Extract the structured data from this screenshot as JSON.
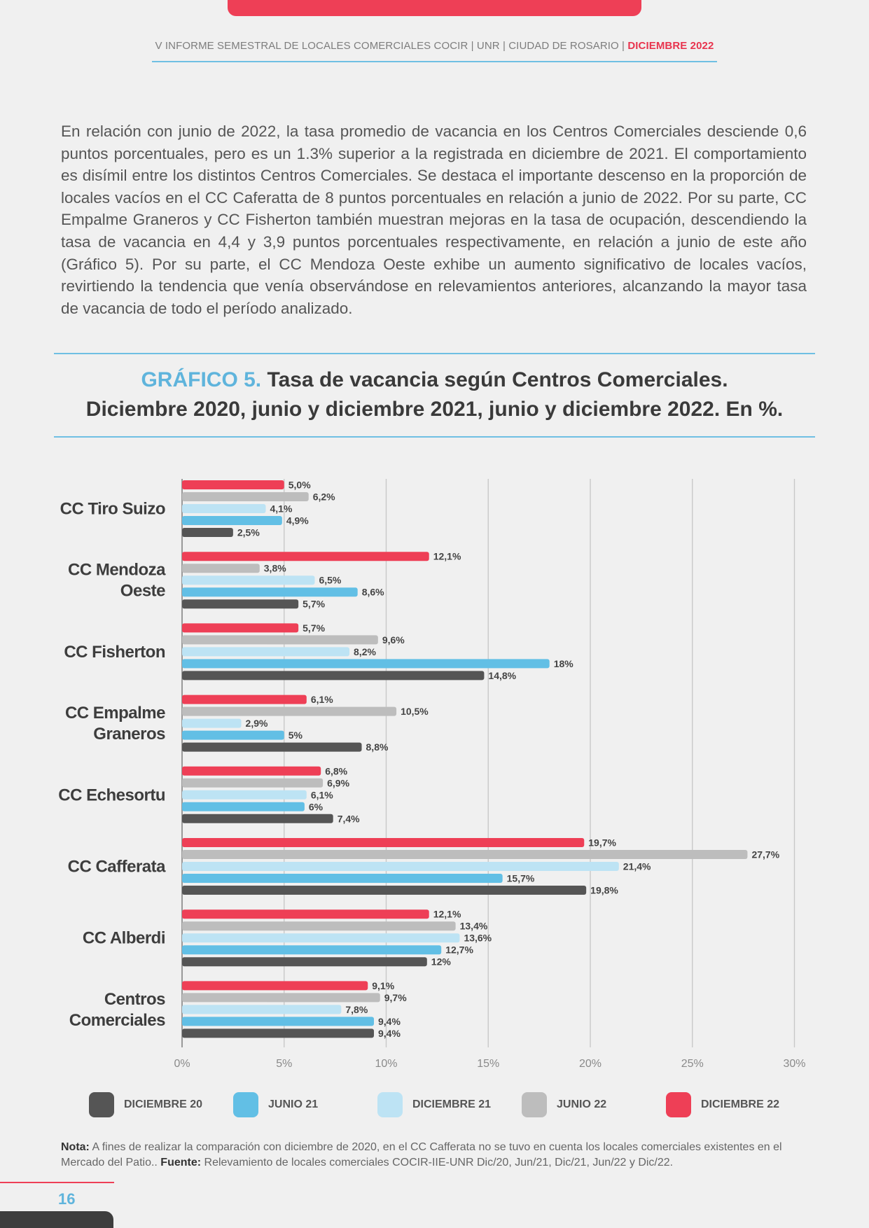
{
  "header": {
    "text": "V INFORME SEMESTRAL DE LOCALES COMERCIALES COCIR | UNR | CIUDAD DE ROSARIO | ",
    "accent": "DICIEMBRE 2022"
  },
  "intro": "En relación con junio de 2022, la tasa promedio de vacancia en los Centros Comerciales desciende 0,6 puntos porcentuales, pero es un 1.3% superior a la registrada en diciembre de 2021. El comportamiento es disímil entre los distintos Centros Comerciales. Se destaca el importante descenso en la proporción de locales vacíos en el CC Caferatta de 8 puntos porcentuales en relación a junio de 2022. Por su parte, CC Empalme Graneros y CC Fisherton también muestran mejoras en la tasa de ocupación, descendiendo la tasa de vacancia en 4,4 y 3,9 puntos porcentuales respectivamente, en relación a junio de este año (Gráfico 5). Por su parte, el CC Mendoza Oeste exhibe un aumento significativo de locales vacíos, revirtiendo la tendencia que venía observándose en relevamientos anteriores, alcanzando la mayor tasa de vacancia de todo el período analizado.",
  "chart_title": {
    "prefix": "GRÁFICO 5.",
    "line1": " Tasa de vacancia según Centros Comerciales.",
    "line2": "Diciembre 2020, junio y diciembre 2021, junio y diciembre 2022. En %."
  },
  "chart_data": {
    "type": "bar",
    "orientation": "horizontal",
    "categories": [
      [
        "CC Tiro Suizo"
      ],
      [
        "CC Mendoza",
        "Oeste"
      ],
      [
        "CC Fisherton"
      ],
      [
        "CC Empalme",
        "Graneros"
      ],
      [
        "CC Echesortu"
      ],
      [
        "CC Cafferata"
      ],
      [
        "CC Alberdi"
      ],
      [
        "Centros",
        "Comerciales"
      ]
    ],
    "series": [
      {
        "name": "DICIEMBRE 22",
        "color": "#ee3f56",
        "values": [
          5.0,
          12.1,
          5.7,
          6.1,
          6.8,
          19.7,
          12.1,
          9.1
        ],
        "labels": [
          "5,0%",
          "12,1%",
          "5,7%",
          "6,1%",
          "6,8%",
          "19,7%",
          "12,1%",
          "9,1%"
        ]
      },
      {
        "name": "JUNIO 22",
        "color": "#bdbdbd",
        "values": [
          6.2,
          3.8,
          9.6,
          10.5,
          6.9,
          27.7,
          13.4,
          9.7
        ],
        "labels": [
          "6,2%",
          "3,8%",
          "9,6%",
          "10,5%",
          "6,9%",
          "27,7%",
          "13,4%",
          "9,7%"
        ]
      },
      {
        "name": "DICIEMBRE 21",
        "color": "#bde3f4",
        "values": [
          4.1,
          6.5,
          8.2,
          2.9,
          6.1,
          21.4,
          13.6,
          7.8
        ],
        "labels": [
          "4,1%",
          "6,5%",
          "8,2%",
          "2,9%",
          "6,1%",
          "21,4%",
          "13,6%",
          "7,8%"
        ]
      },
      {
        "name": "JUNIO 21",
        "color": "#62bfe5",
        "values": [
          4.9,
          8.6,
          18,
          5,
          6,
          15.7,
          12.7,
          9.4
        ],
        "labels": [
          "4,9%",
          "8,6%",
          "18%",
          "5%",
          "6%",
          "15,7%",
          "12,7%",
          "9,4%"
        ]
      },
      {
        "name": "DICIEMBRE 20",
        "color": "#555555",
        "values": [
          2.5,
          5.7,
          14.8,
          8.8,
          7.4,
          19.8,
          12,
          9.4
        ],
        "labels": [
          "2,5%",
          "5,7%",
          "14,8%",
          "8,8%",
          "7,4%",
          "19,8%",
          "12%",
          "9,4%"
        ]
      }
    ],
    "xlim": [
      0,
      30
    ],
    "xticks": [
      "0%",
      "5%",
      "10%",
      "15%",
      "20%",
      "25%",
      "30%"
    ],
    "grid": true,
    "legend_position": "bottom"
  },
  "legend": [
    {
      "label": "DICIEMBRE 20",
      "color": "#555555"
    },
    {
      "label": "JUNIO 21",
      "color": "#62bfe5"
    },
    {
      "label": "DICIEMBRE 21",
      "color": "#bde3f4"
    },
    {
      "label": "JUNIO 22",
      "color": "#bdbdbd"
    },
    {
      "label": "DICIEMBRE 22",
      "color": "#ee3f56"
    }
  ],
  "note": {
    "nota_label": "Nota:",
    "nota_text": " A fines de realizar la comparación con diciembre de 2020, en el CC Cafferata no se tuvo en cuenta los locales comerciales existentes en el Mercado del Patio.. ",
    "fuente_label": "Fuente:",
    "fuente_text": " Relevamiento de locales comerciales COCIR-IIE-UNR Dic/20, Jun/21, Dic/21, Jun/22 y Dic/22."
  },
  "page_number": "16"
}
